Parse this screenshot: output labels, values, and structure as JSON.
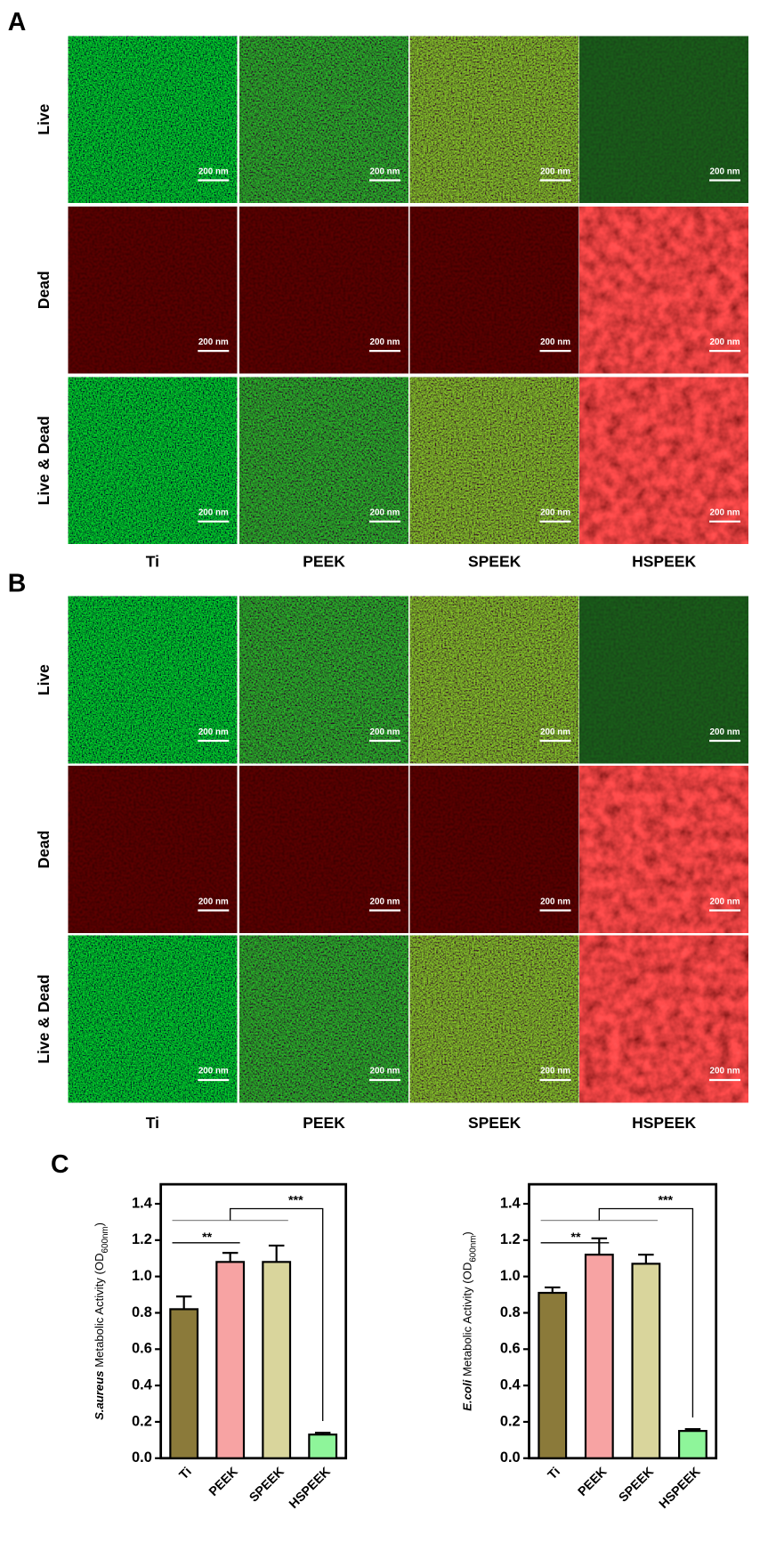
{
  "panel_a": {
    "label": "A",
    "rows": [
      "Live",
      "Dead",
      "Live & Dead"
    ],
    "columns": [
      "Ti",
      "PEEK",
      "SPEEK",
      "HSPEEK"
    ],
    "scale_bar": "200 nm"
  },
  "panel_b": {
    "label": "B",
    "rows": [
      "Live",
      "Dead",
      "Live & Dead"
    ],
    "columns": [
      "Ti",
      "PEEK",
      "SPEEK",
      "HSPEEK"
    ],
    "scale_bar": "200 nm"
  },
  "panel_c": {
    "label": "C"
  },
  "chart_data": [
    {
      "type": "bar",
      "y_label": {
        "species": "S.aureus",
        "text": " Metabolic Activity (OD",
        "subscript": "600nm",
        "close": ")"
      },
      "categories": [
        "Ti",
        "PEEK",
        "SPEEK",
        "HSPEEK"
      ],
      "values": [
        0.82,
        1.08,
        1.08,
        0.13
      ],
      "errors": [
        0.07,
        0.05,
        0.09,
        0.01
      ],
      "colors": [
        "#8b7a3a",
        "#f7a3a3",
        "#d9d59c",
        "#8ef59a"
      ],
      "ylim": [
        0,
        1.4
      ],
      "yticks": [
        {
          "value": 0,
          "label": "0.0"
        },
        0.2,
        0.4,
        0.6,
        0.8,
        {
          "value": 1,
          "label": "1.0"
        },
        1.2,
        1.4
      ],
      "annotations": [
        "**",
        "***"
      ]
    },
    {
      "type": "bar",
      "y_label": {
        "species": "E.coli",
        "text": " Metabolic Activity (OD",
        "subscript": "600nm",
        "close": ")"
      },
      "categories": [
        "Ti",
        "PEEK",
        "SPEEK",
        "HSPEEK"
      ],
      "values": [
        0.91,
        1.12,
        1.07,
        0.15
      ],
      "errors": [
        0.03,
        0.09,
        0.05,
        0.01
      ],
      "colors": [
        "#8b7a3a",
        "#f7a3a3",
        "#d9d59c",
        "#8ef59a"
      ],
      "ylim": [
        0,
        1.4
      ],
      "yticks": [
        {
          "value": 0,
          "label": "0.0"
        },
        0.2,
        0.4,
        0.6,
        0.8,
        {
          "value": 1,
          "label": "1.0"
        },
        1.2,
        1.4
      ],
      "annotations": [
        "**",
        "***"
      ]
    }
  ]
}
